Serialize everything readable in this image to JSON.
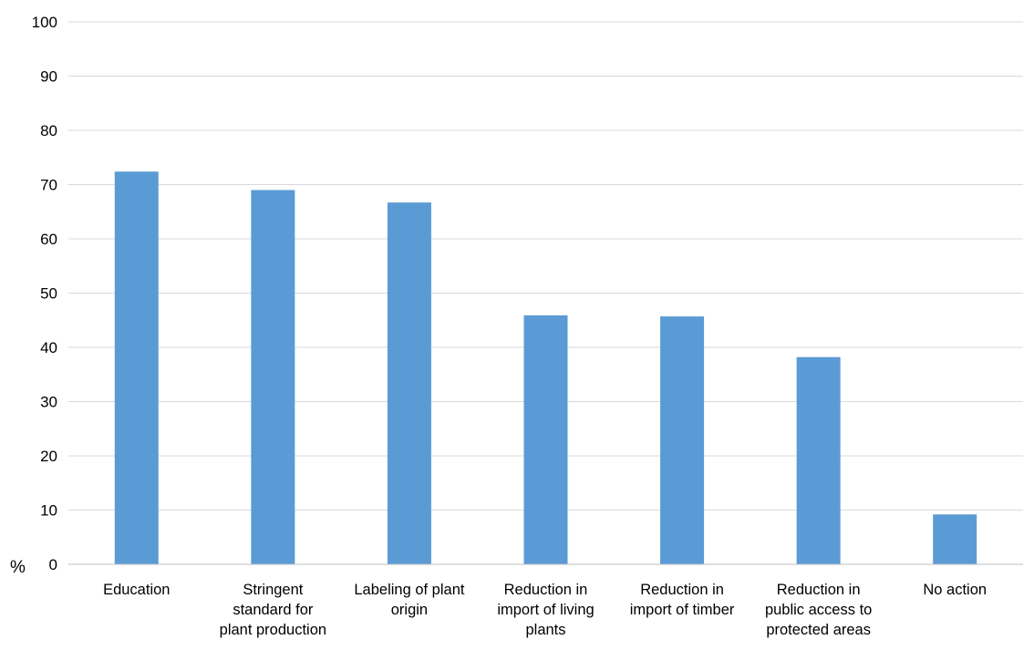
{
  "chart_data": {
    "type": "bar",
    "categories": [
      [
        "Education"
      ],
      [
        "Stringent",
        "standard for",
        "plant production"
      ],
      [
        "Labeling of plant",
        "origin"
      ],
      [
        "Reduction in",
        "import of living",
        "plants"
      ],
      [
        "Reduction in",
        "import of timber"
      ],
      [
        "Reduction in",
        "public access to",
        "protected areas"
      ],
      [
        "No action"
      ]
    ],
    "values": [
      72.4,
      69.0,
      66.7,
      45.9,
      45.7,
      38.2,
      9.2
    ],
    "ylim": [
      0,
      100
    ],
    "yticks": [
      0,
      10,
      20,
      30,
      40,
      50,
      60,
      70,
      80,
      90,
      100
    ],
    "y_unit_label": "%",
    "title": "",
    "xlabel": "",
    "ylabel": "",
    "grid": true,
    "legend": "none",
    "colors": {
      "bar": "#5b9bd5",
      "grid": "#d9d9d9",
      "axis": "#bfbfbf",
      "text": "#000000"
    }
  }
}
